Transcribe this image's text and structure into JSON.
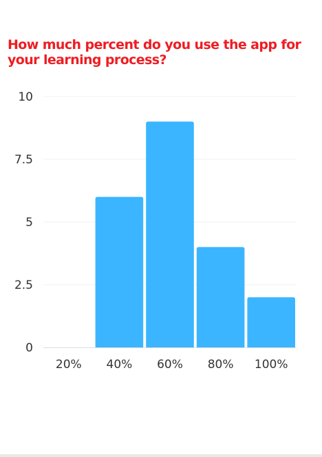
{
  "chart_data": {
    "type": "bar",
    "title": "How much percent do you use the app for your learning process?",
    "categories": [
      "20%",
      "40%",
      "60%",
      "80%",
      "100%"
    ],
    "values": [
      0,
      6,
      9,
      4,
      2
    ],
    "ylim": [
      0,
      10
    ],
    "yticks": [
      0,
      2.5,
      5,
      7.5,
      10
    ],
    "ytick_labels": [
      "0",
      "2.5",
      "5",
      "7.5",
      "10"
    ],
    "xlabel": "",
    "ylabel": "",
    "grid": true,
    "legend": "none",
    "bar_color": "#3bb5ff",
    "title_color": "#ee1d23"
  }
}
